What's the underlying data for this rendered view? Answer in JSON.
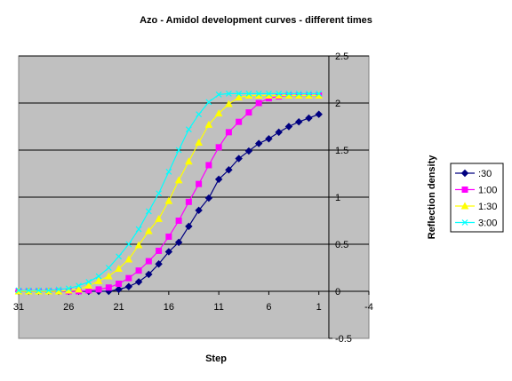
{
  "chart_data": {
    "type": "line",
    "title": "Azo - Amidol development curves - different times",
    "xlabel": "Step",
    "ylabel": "Reflection density",
    "xlim": [
      31,
      -4
    ],
    "ylim": [
      -0.5,
      2.5
    ],
    "x_ticks": [
      31,
      26,
      21,
      16,
      11,
      6,
      1,
      -4
    ],
    "y_ticks": [
      -0.5,
      0,
      0.5,
      1,
      1.5,
      2,
      2.5
    ],
    "y_tick_labels": [
      "-0.5",
      "0",
      "0.5",
      "1",
      "1.5",
      "2",
      "2.5"
    ],
    "grid": "horizontal major gridlines",
    "legend_position": "right",
    "plot_background": "#c0c0c0",
    "x": [
      31,
      30,
      29,
      28,
      27,
      26,
      25,
      24,
      23,
      22,
      21,
      20,
      19,
      18,
      17,
      16,
      15,
      14,
      13,
      12,
      11,
      10,
      9,
      8,
      7,
      6,
      5,
      4,
      3,
      2,
      1
    ],
    "series": [
      {
        "name": ":30",
        "color": "#000080",
        "marker": "diamond",
        "values": [
          0,
          0,
          0,
          0,
          0,
          0,
          0,
          0,
          0,
          0,
          0.02,
          0.05,
          0.1,
          0.18,
          0.29,
          0.42,
          0.52,
          0.69,
          0.86,
          0.99,
          1.19,
          1.29,
          1.41,
          1.49,
          1.57,
          1.62,
          1.69,
          1.75,
          1.8,
          1.84,
          1.88
        ]
      },
      {
        "name": "1:00",
        "color": "#ff00ff",
        "marker": "square",
        "values": [
          0,
          0,
          0,
          0,
          0,
          0,
          0,
          0.01,
          0.02,
          0.04,
          0.08,
          0.14,
          0.22,
          0.32,
          0.43,
          0.58,
          0.75,
          0.95,
          1.14,
          1.34,
          1.53,
          1.69,
          1.8,
          1.9,
          2,
          2.05,
          2.07,
          2.08,
          2.08,
          2.08,
          2.08
        ]
      },
      {
        "name": "1:30",
        "color": "#ffff00",
        "marker": "triangle",
        "values": [
          0,
          0,
          0,
          0,
          0,
          0.01,
          0.02,
          0.06,
          0.11,
          0.16,
          0.24,
          0.34,
          0.49,
          0.64,
          0.77,
          0.96,
          1.18,
          1.38,
          1.58,
          1.77,
          1.89,
          1.99,
          2.06,
          2.08,
          2.08,
          2.08,
          2.08,
          2.08,
          2.08,
          2.08,
          2.08
        ]
      },
      {
        "name": "3:00",
        "color": "#00ffff",
        "marker": "x",
        "values": [
          0.01,
          0.01,
          0.01,
          0.01,
          0.02,
          0.03,
          0.06,
          0.1,
          0.16,
          0.25,
          0.37,
          0.5,
          0.66,
          0.85,
          1.04,
          1.27,
          1.5,
          1.72,
          1.88,
          2.01,
          2.09,
          2.1,
          2.1,
          2.1,
          2.1,
          2.1,
          2.1,
          2.1,
          2.1,
          2.1,
          2.1
        ]
      }
    ]
  }
}
